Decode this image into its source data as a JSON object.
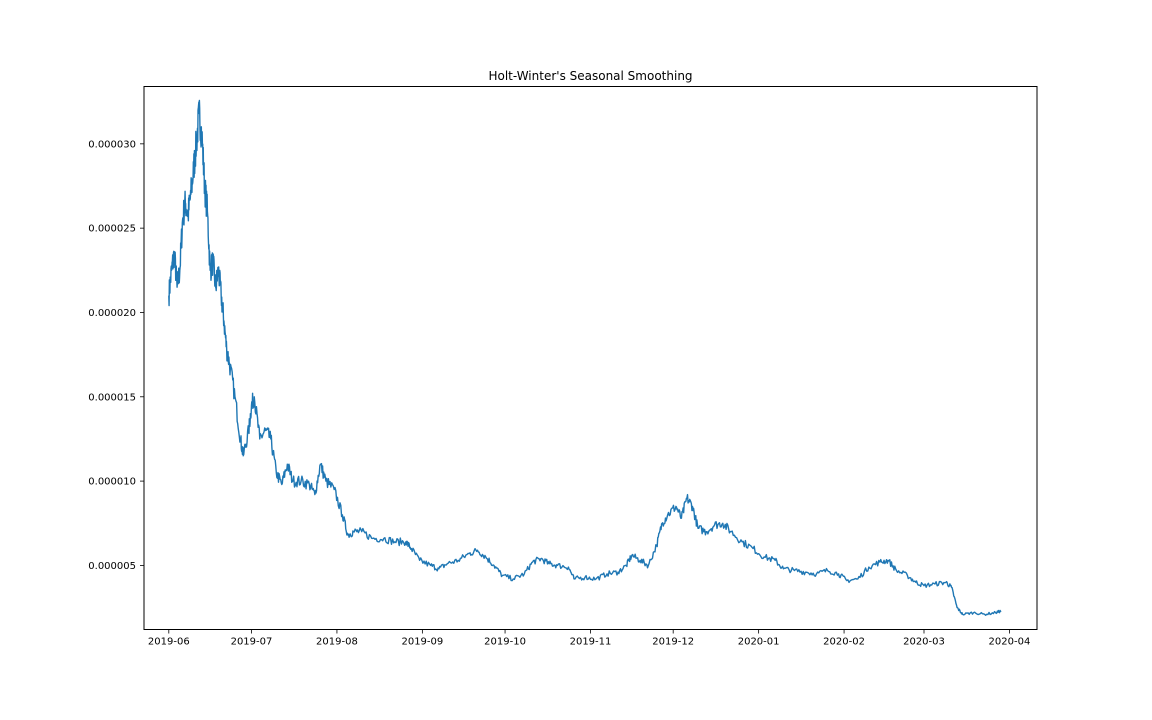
{
  "chart_data": {
    "type": "line",
    "title": "Holt-Winter's Seasonal Smoothing",
    "xlabel": "",
    "ylabel": "",
    "grid": false,
    "x_axis_type": "date",
    "xlim": [
      "2019-05-23",
      "2020-04-11"
    ],
    "ylim": [
      1.2e-06,
      3.34e-05
    ],
    "x_ticks": [
      "2019-06",
      "2019-07",
      "2019-08",
      "2019-09",
      "2019-10",
      "2019-11",
      "2019-12",
      "2020-01",
      "2020-02",
      "2020-03",
      "2020-04"
    ],
    "y_ticks": [
      "0.000005",
      "0.000010",
      "0.000015",
      "0.000020",
      "0.000025",
      "0.000030"
    ],
    "series": [
      {
        "color": "#1f77b4",
        "points": [
          [
            "2019-06-01",
            2.1e-05
          ],
          [
            "2019-06-02",
            2.25e-05
          ],
          [
            "2019-06-03",
            2.35e-05
          ],
          [
            "2019-06-04",
            2.15e-05
          ],
          [
            "2019-06-05",
            2.25e-05
          ],
          [
            "2019-06-06",
            2.55e-05
          ],
          [
            "2019-06-07",
            2.65e-05
          ],
          [
            "2019-06-08",
            2.58e-05
          ],
          [
            "2019-06-09",
            2.7e-05
          ],
          [
            "2019-06-10",
            2.85e-05
          ],
          [
            "2019-06-11",
            3e-05
          ],
          [
            "2019-06-12",
            3.18e-05
          ],
          [
            "2019-06-13",
            3.05e-05
          ],
          [
            "2019-06-14",
            2.75e-05
          ],
          [
            "2019-06-15",
            2.6e-05
          ],
          [
            "2019-06-16",
            2.25e-05
          ],
          [
            "2019-06-17",
            2.3e-05
          ],
          [
            "2019-06-18",
            2.15e-05
          ],
          [
            "2019-06-19",
            2.25e-05
          ],
          [
            "2019-06-20",
            2.1e-05
          ],
          [
            "2019-06-21",
            1.95e-05
          ],
          [
            "2019-06-22",
            1.78e-05
          ],
          [
            "2019-06-23",
            1.7e-05
          ],
          [
            "2019-06-25",
            1.5e-05
          ],
          [
            "2019-06-27",
            1.25e-05
          ],
          [
            "2019-06-28",
            1.15e-05
          ],
          [
            "2019-06-30",
            1.3e-05
          ],
          [
            "2019-07-01",
            1.45e-05
          ],
          [
            "2019-07-02",
            1.5e-05
          ],
          [
            "2019-07-04",
            1.25e-05
          ],
          [
            "2019-07-06",
            1.3e-05
          ],
          [
            "2019-07-08",
            1.25e-05
          ],
          [
            "2019-07-10",
            1.05e-05
          ],
          [
            "2019-07-12",
            9.8e-06
          ],
          [
            "2019-07-14",
            1.1e-05
          ],
          [
            "2019-07-16",
            1e-05
          ],
          [
            "2019-07-19",
            1e-05
          ],
          [
            "2019-07-22",
            9.8e-06
          ],
          [
            "2019-07-24",
            9.2e-06
          ],
          [
            "2019-07-26",
            1.1e-05
          ],
          [
            "2019-07-28",
            1e-05
          ],
          [
            "2019-07-31",
            9.5e-06
          ],
          [
            "2019-08-03",
            8e-06
          ],
          [
            "2019-08-05",
            6.8e-06
          ],
          [
            "2019-08-07",
            7e-06
          ],
          [
            "2019-08-10",
            7e-06
          ],
          [
            "2019-08-14",
            6.6e-06
          ],
          [
            "2019-08-18",
            6.6e-06
          ],
          [
            "2019-08-22",
            6.4e-06
          ],
          [
            "2019-08-26",
            6.4e-06
          ],
          [
            "2019-08-28",
            6e-06
          ],
          [
            "2019-08-31",
            5.3e-06
          ],
          [
            "2019-09-04",
            5e-06
          ],
          [
            "2019-09-07",
            4.8e-06
          ],
          [
            "2019-09-10",
            5.1e-06
          ],
          [
            "2019-09-14",
            5.3e-06
          ],
          [
            "2019-09-18",
            5.7e-06
          ],
          [
            "2019-09-21",
            5.9e-06
          ],
          [
            "2019-09-24",
            5.5e-06
          ],
          [
            "2019-09-27",
            5e-06
          ],
          [
            "2019-09-30",
            4.4e-06
          ],
          [
            "2019-10-04",
            4.2e-06
          ],
          [
            "2019-10-08",
            4.5e-06
          ],
          [
            "2019-10-11",
            5.2e-06
          ],
          [
            "2019-10-14",
            5.4e-06
          ],
          [
            "2019-10-17",
            5.1e-06
          ],
          [
            "2019-10-20",
            5e-06
          ],
          [
            "2019-10-24",
            4.9e-06
          ],
          [
            "2019-10-26",
            4.2e-06
          ],
          [
            "2019-10-30",
            4.3e-06
          ],
          [
            "2019-11-03",
            4.2e-06
          ],
          [
            "2019-11-07",
            4.5e-06
          ],
          [
            "2019-11-11",
            4.6e-06
          ],
          [
            "2019-11-14",
            5e-06
          ],
          [
            "2019-11-16",
            5.6e-06
          ],
          [
            "2019-11-19",
            5.3e-06
          ],
          [
            "2019-11-22",
            5e-06
          ],
          [
            "2019-11-25",
            6.2e-06
          ],
          [
            "2019-11-27",
            7.5e-06
          ],
          [
            "2019-11-29",
            8e-06
          ],
          [
            "2019-12-02",
            8.5e-06
          ],
          [
            "2019-12-04",
            7.8e-06
          ],
          [
            "2019-12-06",
            9e-06
          ],
          [
            "2019-12-08",
            8.5e-06
          ],
          [
            "2019-12-10",
            7.2e-06
          ],
          [
            "2019-12-13",
            7e-06
          ],
          [
            "2019-12-16",
            7.4e-06
          ],
          [
            "2019-12-19",
            7.5e-06
          ],
          [
            "2019-12-22",
            7e-06
          ],
          [
            "2019-12-26",
            6.4e-06
          ],
          [
            "2019-12-30",
            6e-06
          ],
          [
            "2020-01-03",
            5.5e-06
          ],
          [
            "2020-01-07",
            5.3e-06
          ],
          [
            "2020-01-10",
            4.8e-06
          ],
          [
            "2020-01-14",
            4.7e-06
          ],
          [
            "2020-01-18",
            4.6e-06
          ],
          [
            "2020-01-22",
            4.5e-06
          ],
          [
            "2020-01-26",
            4.7e-06
          ],
          [
            "2020-01-30",
            4.5e-06
          ],
          [
            "2020-02-02",
            4.1e-06
          ],
          [
            "2020-02-06",
            4.2e-06
          ],
          [
            "2020-02-10",
            4.9e-06
          ],
          [
            "2020-02-14",
            5.2e-06
          ],
          [
            "2020-02-17",
            5.3e-06
          ],
          [
            "2020-02-20",
            4.7e-06
          ],
          [
            "2020-02-24",
            4.4e-06
          ],
          [
            "2020-02-27",
            4e-06
          ],
          [
            "2020-03-01",
            3.8e-06
          ],
          [
            "2020-03-05",
            3.9e-06
          ],
          [
            "2020-03-09",
            4e-06
          ],
          [
            "2020-03-11",
            3.7e-06
          ],
          [
            "2020-03-13",
            2.5e-06
          ],
          [
            "2020-03-15",
            2.1e-06
          ],
          [
            "2020-03-19",
            2.2e-06
          ],
          [
            "2020-03-23",
            2.1e-06
          ],
          [
            "2020-03-27",
            2.2e-06
          ],
          [
            "2020-03-29",
            2.3e-06
          ]
        ]
      }
    ]
  }
}
